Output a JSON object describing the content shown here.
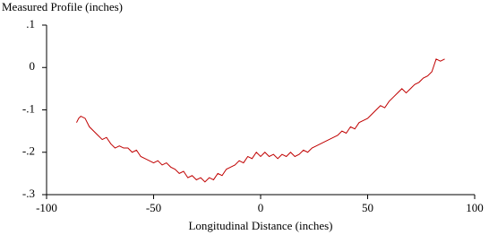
{
  "chart_data": {
    "type": "line",
    "y_label": "Measured Profile (inches)",
    "x_label": "Longitudinal Distance (inches)",
    "color": "#c00000",
    "x": [
      -86,
      -85,
      -84,
      -82,
      -80,
      -78,
      -76,
      -74,
      -72,
      -70,
      -68,
      -66,
      -64,
      -62,
      -60,
      -58,
      -56,
      -54,
      -52,
      -50,
      -48,
      -46,
      -44,
      -42,
      -40,
      -38,
      -36,
      -34,
      -32,
      -30,
      -28,
      -26,
      -24,
      -22,
      -20,
      -18,
      -16,
      -14,
      -12,
      -10,
      -8,
      -6,
      -4,
      -2,
      0,
      2,
      4,
      6,
      8,
      10,
      12,
      14,
      16,
      18,
      20,
      22,
      24,
      26,
      28,
      30,
      32,
      34,
      36,
      38,
      40,
      42,
      44,
      46,
      48,
      50,
      52,
      54,
      56,
      58,
      60,
      62,
      64,
      66,
      68,
      70,
      72,
      74,
      76,
      78,
      80,
      82,
      84,
      86
    ],
    "values": [
      -0.13,
      -0.12,
      -0.115,
      -0.12,
      -0.14,
      -0.15,
      -0.16,
      -0.17,
      -0.165,
      -0.18,
      -0.19,
      -0.185,
      -0.19,
      -0.19,
      -0.2,
      -0.195,
      -0.21,
      -0.215,
      -0.22,
      -0.225,
      -0.22,
      -0.23,
      -0.225,
      -0.235,
      -0.24,
      -0.25,
      -0.245,
      -0.26,
      -0.255,
      -0.265,
      -0.26,
      -0.27,
      -0.26,
      -0.265,
      -0.25,
      -0.255,
      -0.24,
      -0.235,
      -0.23,
      -0.22,
      -0.225,
      -0.21,
      -0.215,
      -0.2,
      -0.21,
      -0.2,
      -0.21,
      -0.205,
      -0.215,
      -0.205,
      -0.21,
      -0.2,
      -0.21,
      -0.205,
      -0.195,
      -0.2,
      -0.19,
      -0.185,
      -0.18,
      -0.175,
      -0.17,
      -0.165,
      -0.16,
      -0.15,
      -0.155,
      -0.14,
      -0.145,
      -0.13,
      -0.125,
      -0.12,
      -0.11,
      -0.1,
      -0.09,
      -0.095,
      -0.08,
      -0.07,
      -0.06,
      -0.05,
      -0.06,
      -0.05,
      -0.04,
      -0.035,
      -0.025,
      -0.02,
      -0.01,
      0.02,
      0.015,
      0.02
    ],
    "xlim": [
      -100,
      100
    ],
    "xticks": [
      -100,
      -50,
      0,
      50,
      100
    ],
    "ylim": [
      -0.3,
      0.1
    ],
    "yticks": [
      {
        "value": -0.3,
        "label": "-.3"
      },
      {
        "value": -0.2,
        "label": "-.2"
      },
      {
        "value": -0.1,
        "label": "-.1"
      },
      0,
      {
        "value": 0.1,
        "label": ".1"
      }
    ]
  }
}
